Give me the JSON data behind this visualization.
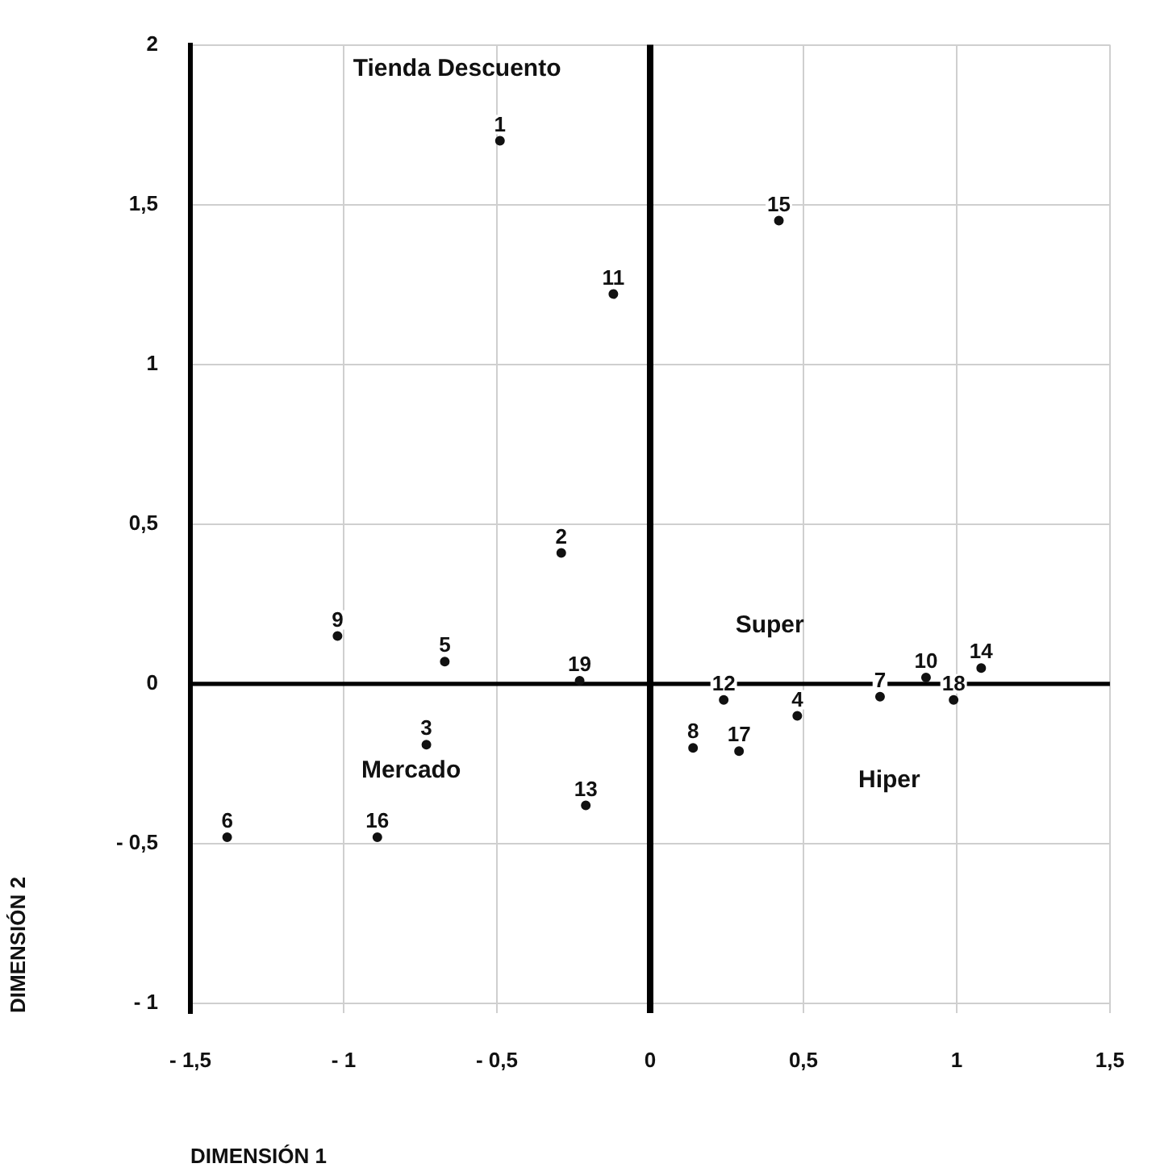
{
  "chart_data": {
    "type": "scatter",
    "xlabel": "DIMENSIÓN 1",
    "ylabel": "DIMENSIÓN 2",
    "xlim": [
      -1.5,
      1.5
    ],
    "ylim": [
      -1.03,
      2
    ],
    "xticks": [
      {
        "value": -1.5,
        "label": "- 1,5"
      },
      {
        "value": -1,
        "label": "- 1"
      },
      {
        "value": -0.5,
        "label": "- 0,5"
      },
      0,
      {
        "value": 0.5,
        "label": "0,5"
      },
      1,
      {
        "value": 1.5,
        "label": "1,5"
      }
    ],
    "yticks": [
      {
        "value": -1,
        "label": "- 1"
      },
      {
        "value": -0.5,
        "label": "- 0,5"
      },
      0,
      {
        "value": 0.5,
        "label": "0,5"
      },
      1,
      {
        "value": 1.5,
        "label": "1,5"
      },
      2
    ],
    "grid": true,
    "legend": false,
    "marker": "circle",
    "series": [
      {
        "name": "1",
        "color": "#111111",
        "x": [
          -0.49
        ],
        "values": [
          1.7
        ]
      },
      {
        "name": "2",
        "color": "#111111",
        "x": [
          -0.29
        ],
        "values": [
          0.41
        ]
      },
      {
        "name": "3",
        "color": "#111111",
        "x": [
          -0.73
        ],
        "values": [
          -0.19
        ]
      },
      {
        "name": "4",
        "color": "#111111",
        "x": [
          0.48
        ],
        "values": [
          -0.1
        ]
      },
      {
        "name": "5",
        "color": "#111111",
        "x": [
          -0.67
        ],
        "values": [
          0.07
        ]
      },
      {
        "name": "6",
        "color": "#111111",
        "x": [
          -1.38
        ],
        "values": [
          -0.48
        ]
      },
      {
        "name": "7",
        "color": "#111111",
        "x": [
          0.75
        ],
        "values": [
          -0.04
        ]
      },
      {
        "name": "8",
        "color": "#111111",
        "x": [
          0.14
        ],
        "values": [
          -0.2
        ]
      },
      {
        "name": "9",
        "color": "#111111",
        "x": [
          -1.02
        ],
        "values": [
          0.15
        ]
      },
      {
        "name": "10",
        "color": "#111111",
        "x": [
          0.9
        ],
        "values": [
          0.02
        ]
      },
      {
        "name": "11",
        "color": "#111111",
        "x": [
          -0.12
        ],
        "values": [
          1.22
        ]
      },
      {
        "name": "12",
        "color": "#111111",
        "x": [
          0.24
        ],
        "values": [
          -0.05
        ]
      },
      {
        "name": "13",
        "color": "#111111",
        "x": [
          -0.21
        ],
        "values": [
          -0.38
        ]
      },
      {
        "name": "14",
        "color": "#111111",
        "x": [
          1.08
        ],
        "values": [
          0.05
        ]
      },
      {
        "name": "15",
        "color": "#111111",
        "x": [
          0.42
        ],
        "values": [
          1.45
        ]
      },
      {
        "name": "16",
        "color": "#111111",
        "x": [
          -0.89
        ],
        "values": [
          -0.48
        ]
      },
      {
        "name": "17",
        "color": "#111111",
        "x": [
          0.29
        ],
        "values": [
          -0.21
        ]
      },
      {
        "name": "18",
        "color": "#111111",
        "x": [
          0.99
        ],
        "values": [
          -0.05
        ]
      },
      {
        "name": "19",
        "color": "#111111",
        "x": [
          -0.23
        ],
        "values": [
          0.01
        ]
      }
    ],
    "ref_lines": [
      {
        "axis": "x",
        "value": 0,
        "color": "#000000"
      },
      {
        "axis": "y",
        "value": 0,
        "color": "#000000"
      }
    ],
    "annotations": [
      "Tienda Descuento",
      "Super",
      "Mercado",
      "Hiper"
    ]
  }
}
